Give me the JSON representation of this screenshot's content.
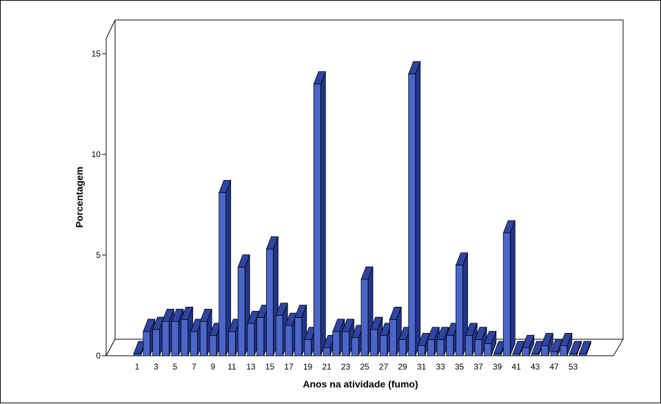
{
  "chart_data": {
    "type": "bar",
    "style": "3d-bar",
    "title": "",
    "xlabel": "Anos na atividade (fumo)",
    "ylabel": "Porcentagem",
    "ylim": [
      0,
      15
    ],
    "y_ticks": [
      0,
      5,
      10,
      15
    ],
    "grid": false,
    "legend": "none",
    "colors": {
      "bar_front": "#4A66C8",
      "bar_side": "#22348A",
      "bar_top": "#2F45A0",
      "outline": "#000000"
    },
    "categories": [
      "1",
      "2",
      "3",
      "4",
      "5",
      "6",
      "7",
      "8",
      "9",
      "10",
      "11",
      "12",
      "13",
      "14",
      "15",
      "16",
      "17",
      "18",
      "19",
      "20",
      "21",
      "22",
      "23",
      "24",
      "25",
      "26",
      "27",
      "28",
      "29",
      "30",
      "31",
      "32",
      "33",
      "34",
      "35",
      "36",
      "37",
      "38",
      "39",
      "40",
      "41",
      "42",
      "43",
      "44",
      "47",
      "48",
      "53",
      "54"
    ],
    "x_tick_labels": [
      "1",
      "3",
      "5",
      "7",
      "9",
      "11",
      "13",
      "15",
      "17",
      "19",
      "21",
      "23",
      "25",
      "27",
      "29",
      "31",
      "33",
      "35",
      "37",
      "39",
      "41",
      "43",
      "47",
      "53"
    ],
    "values": [
      0.1,
      1.2,
      1.3,
      1.7,
      1.7,
      1.8,
      1.2,
      1.7,
      1.0,
      8.1,
      1.2,
      4.4,
      1.6,
      1.9,
      5.3,
      2.0,
      1.5,
      1.9,
      0.8,
      13.5,
      0.4,
      1.2,
      1.2,
      0.9,
      3.8,
      1.3,
      1.0,
      1.8,
      0.8,
      14.0,
      0.5,
      0.8,
      0.8,
      1.0,
      4.5,
      1.0,
      0.8,
      0.6,
      0.1,
      6.1,
      0.1,
      0.4,
      0.1,
      0.5,
      0.2,
      0.5,
      0.1,
      0.1
    ]
  }
}
